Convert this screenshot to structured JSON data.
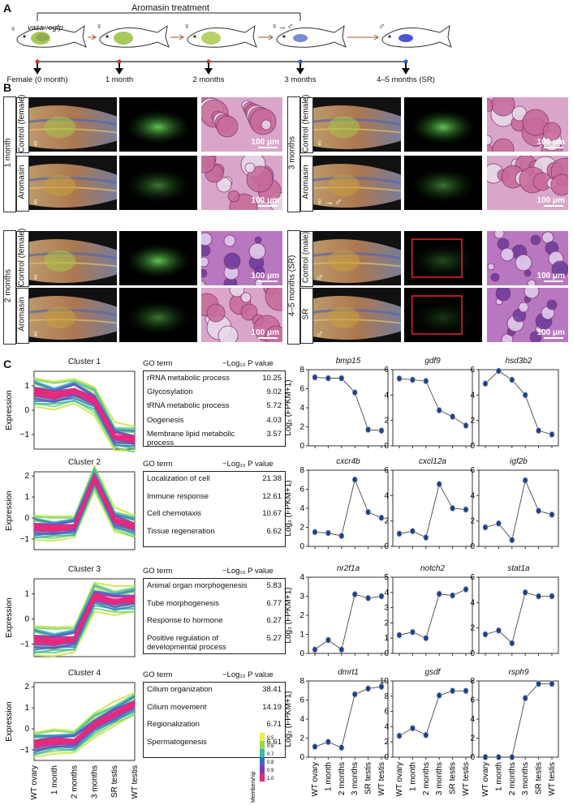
{
  "panel_a": {
    "letter": "A",
    "treatment_label": "Aromasin treatment",
    "transgene_label": "vasa::egfp",
    "timepoints": [
      "Female (0 month)",
      "1 month",
      "2 months",
      "3 months",
      "4–5 months (SR)"
    ],
    "sex_symbols": [
      "♀",
      "♀",
      "♀",
      "♀→♂",
      "♂"
    ]
  },
  "panel_b": {
    "letter": "B",
    "left_groups": [
      {
        "age": "1 month",
        "rows": [
          {
            "label": "Control (female)",
            "sex": "♀"
          },
          {
            "label": "Aromasin",
            "sex": "♀"
          }
        ]
      },
      {
        "age": "2 months",
        "rows": [
          {
            "label": "Control (female)",
            "sex": "♀"
          },
          {
            "label": "Aromasin",
            "sex": "♀"
          }
        ]
      }
    ],
    "right_groups": [
      {
        "age": "3 months",
        "rows": [
          {
            "label": "Control (female)",
            "sex": "♀"
          },
          {
            "label": "Aromasin",
            "sex": "♀→♂"
          }
        ]
      },
      {
        "age": "4–5 months (SR)",
        "rows": [
          {
            "label": "Control (male)",
            "sex": "♂"
          },
          {
            "label": "SR",
            "sex": "♂"
          }
        ]
      }
    ],
    "scale_bar": "100 μm"
  },
  "panel_c": {
    "letter": "C",
    "x_categories": [
      "WT ovary",
      "1 month",
      "2 months",
      "3 months",
      "SR testis",
      "WT testis"
    ],
    "cluster_ylabel": "Expression",
    "gene_ylabel": "Log₂ (FPKM+1)",
    "go_header": "GO term",
    "pval_header": "−Log₁₀ P value",
    "legend": {
      "title": "Membership",
      "ticks": [
        "0.5",
        "0.6",
        "0.7",
        "0.8",
        "0.9",
        "1.0"
      ]
    },
    "clusters": [
      {
        "title": "Cluster 1",
        "profile": [
          0.8,
          0.6,
          0.8,
          0.4,
          -1.1,
          -1.2
        ],
        "yticks": [
          "1",
          "0",
          "−1"
        ],
        "ylim": [
          -1.6,
          1.6
        ],
        "go_terms": [
          {
            "term": "rRNA metabolic process",
            "p": "10.25"
          },
          {
            "term": "Glycosylation",
            "p": "9.02"
          },
          {
            "term": "tRNA metabolic process",
            "p": "5.72"
          },
          {
            "term": "Oogenesis",
            "p": "4.03"
          },
          {
            "term": "Membrane lipid metabolic process",
            "p": "3.57"
          }
        ],
        "genes": [
          {
            "name": "bmp15",
            "values": [
              7.2,
              7.1,
              7.1,
              5.6,
              1.7,
              1.6
            ],
            "ylim": [
              0,
              8
            ],
            "yticks": [
              "0",
              "2",
              "4",
              "6",
              "8"
            ]
          },
          {
            "name": "gdf9",
            "values": [
              5.3,
              5.2,
              5.1,
              2.8,
              2.3,
              1.6
            ],
            "ylim": [
              0,
              6
            ],
            "yticks": [
              "0",
              "2",
              "4",
              "6"
            ]
          },
          {
            "name": "hsd3b2",
            "values": [
              4.9,
              5.9,
              5.2,
              4.0,
              1.2,
              0.9
            ],
            "ylim": [
              0,
              6
            ],
            "yticks": [
              "0",
              "2",
              "4",
              "6"
            ]
          }
        ]
      },
      {
        "title": "Cluster 2",
        "profile": [
          -0.4,
          -0.5,
          -0.4,
          1.9,
          -0.1,
          -0.4
        ],
        "yticks": [
          "2",
          "1",
          "0",
          "−1"
        ],
        "ylim": [
          -1.5,
          2.2
        ],
        "go_terms": [
          {
            "term": "Localization of cell",
            "p": "21.38"
          },
          {
            "term": "Immune response",
            "p": "12.61"
          },
          {
            "term": "Cell chemotaxis",
            "p": "10.67"
          },
          {
            "term": "Tissue regeneration",
            "p": "6.62"
          }
        ],
        "genes": [
          {
            "name": "cxcr4b",
            "values": [
              1.5,
              1.4,
              1.1,
              7.0,
              3.6,
              3.0
            ],
            "ylim": [
              0,
              8
            ],
            "yticks": [
              "0",
              "2",
              "4",
              "6",
              "8"
            ]
          },
          {
            "name": "cxcl12a",
            "values": [
              1.0,
              1.2,
              0.7,
              4.9,
              3.0,
              2.9
            ],
            "ylim": [
              0,
              6
            ],
            "yticks": [
              "0",
              "2",
              "4",
              "6"
            ]
          },
          {
            "name": "igf2b",
            "values": [
              1.5,
              1.8,
              0.5,
              5.2,
              2.8,
              2.5
            ],
            "ylim": [
              0,
              6
            ],
            "yticks": [
              "0",
              "2",
              "4",
              "6"
            ]
          }
        ]
      },
      {
        "title": "Cluster 3",
        "profile": [
          -0.8,
          -0.9,
          -0.8,
          0.9,
          0.7,
          0.8
        ],
        "yticks": [
          "1",
          "0",
          "−1"
        ],
        "ylim": [
          -1.5,
          1.6
        ],
        "go_terms": [
          {
            "term": "Animal organ morphogenesis",
            "p": "5.83"
          },
          {
            "term": "Tube morphogenesis",
            "p": "6.77"
          },
          {
            "term": "Response to hormone",
            "p": "6.27"
          },
          {
            "term": "Positive regulation of developmental process",
            "p": "5.27"
          }
        ],
        "genes": [
          {
            "name": "nr2f1a",
            "values": [
              0.2,
              0.7,
              0.2,
              3.1,
              2.9,
              3.0
            ],
            "ylim": [
              0,
              4
            ],
            "yticks": [
              "0",
              "1",
              "2",
              "3",
              "4"
            ]
          },
          {
            "name": "notch2",
            "values": [
              1.2,
              1.4,
              1.0,
              3.9,
              3.8,
              4.2
            ],
            "ylim": [
              0,
              5
            ],
            "yticks": [
              "0",
              "1",
              "2",
              "3",
              "4",
              "5"
            ]
          },
          {
            "name": "stat1a",
            "values": [
              1.5,
              1.8,
              0.8,
              4.8,
              4.5,
              4.5
            ],
            "ylim": [
              0,
              6
            ],
            "yticks": [
              "0",
              "2",
              "4",
              "6"
            ]
          }
        ]
      },
      {
        "title": "Cluster 4",
        "profile": [
          -0.7,
          -0.6,
          -0.6,
          0.2,
          0.7,
          1.2
        ],
        "yticks": [
          "2",
          "1",
          "0",
          "−1"
        ],
        "ylim": [
          -1.5,
          2.2
        ],
        "go_terms": [
          {
            "term": "Cilium organization",
            "p": "38.41"
          },
          {
            "term": "Cilium movement",
            "p": "14.19"
          },
          {
            "term": "Regionalization",
            "p": "6.71"
          },
          {
            "term": "Spermatogenesis",
            "p": "6.61"
          }
        ],
        "genes": [
          {
            "name": "dmrt1",
            "values": [
              1.1,
              1.6,
              1.0,
              6.6,
              7.2,
              7.4
            ],
            "ylim": [
              0,
              8
            ],
            "yticks": [
              "0",
              "2",
              "4",
              "6",
              "8"
            ]
          },
          {
            "name": "gsdf",
            "values": [
              2.8,
              3.8,
              2.9,
              8.1,
              8.7,
              8.7
            ],
            "ylim": [
              0,
              10
            ],
            "yticks": [
              "0",
              "2",
              "4",
              "6",
              "8",
              "10"
            ]
          },
          {
            "name": "rsph9",
            "values": [
              0.0,
              0.0,
              0.0,
              6.2,
              7.7,
              7.7
            ],
            "ylim": [
              0,
              8
            ],
            "yticks": [
              "0",
              "2",
              "4",
              "6",
              "8"
            ]
          }
        ]
      }
    ]
  }
}
